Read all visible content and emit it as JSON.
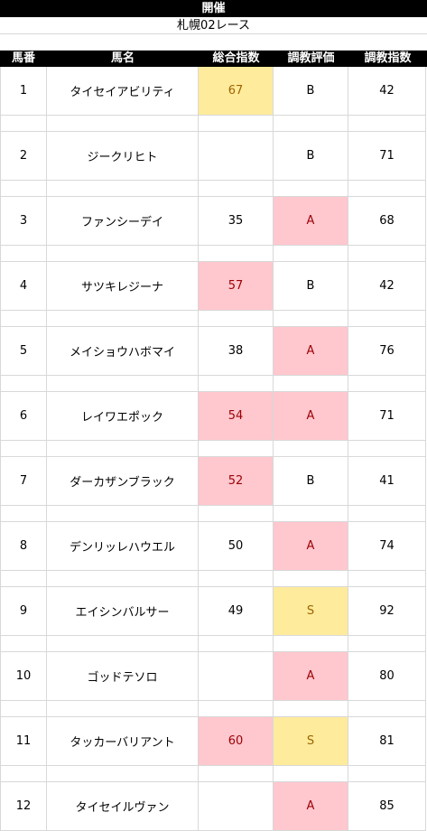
{
  "title": "開催",
  "subtitle": "札幌02レース",
  "columns": [
    "馬番",
    "馬名",
    "総合指数",
    "調教評価",
    "調教指数"
  ],
  "rows": [
    {
      "no": "1",
      "name": "タイセイアビリティ",
      "total": "67",
      "total_hl": "yellow",
      "eval": "B",
      "eval_hl": "",
      "train": "42"
    },
    {
      "no": "2",
      "name": "ジークリヒト",
      "total": "",
      "total_hl": "",
      "eval": "B",
      "eval_hl": "",
      "train": "71"
    },
    {
      "no": "3",
      "name": "ファンシーデイ",
      "total": "35",
      "total_hl": "",
      "eval": "A",
      "eval_hl": "pink",
      "train": "68"
    },
    {
      "no": "4",
      "name": "サツキレジーナ",
      "total": "57",
      "total_hl": "pink",
      "eval": "B",
      "eval_hl": "",
      "train": "42"
    },
    {
      "no": "5",
      "name": "メイショウハボマイ",
      "total": "38",
      "total_hl": "",
      "eval": "A",
      "eval_hl": "pink",
      "train": "76"
    },
    {
      "no": "6",
      "name": "レイワエポック",
      "total": "54",
      "total_hl": "pink",
      "eval": "A",
      "eval_hl": "pink",
      "train": "71"
    },
    {
      "no": "7",
      "name": "ダーカザンブラック",
      "total": "52",
      "total_hl": "pink",
      "eval": "B",
      "eval_hl": "",
      "train": "41"
    },
    {
      "no": "8",
      "name": "デンリッレハウエル",
      "total": "50",
      "total_hl": "",
      "eval": "A",
      "eval_hl": "pink",
      "train": "74"
    },
    {
      "no": "9",
      "name": "エイシンバルサー",
      "total": "49",
      "total_hl": "",
      "eval": "S",
      "eval_hl": "yellow",
      "train": "92"
    },
    {
      "no": "10",
      "name": "ゴッドテソロ",
      "total": "",
      "total_hl": "",
      "eval": "A",
      "eval_hl": "pink",
      "train": "80"
    },
    {
      "no": "11",
      "name": "タッカーバリアント",
      "total": "60",
      "total_hl": "pink",
      "eval": "S",
      "eval_hl": "yellow",
      "train": "81"
    },
    {
      "no": "12",
      "name": "タイセイルヴァン",
      "total": "",
      "total_hl": "",
      "eval": "A",
      "eval_hl": "pink",
      "train": "85"
    }
  ],
  "colors": {
    "highlight_yellow": "#ffeb9c",
    "highlight_pink": "#ffc7ce",
    "header_bg": "#000000"
  }
}
